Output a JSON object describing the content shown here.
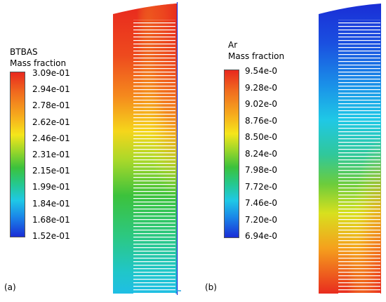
{
  "panel_a": {
    "label": "(a)",
    "legend_title_1": "BTBAS",
    "legend_title_2": "Mass fraction",
    "ticks": [
      "3.09e-01",
      "2.94e-01",
      "2.78e-01",
      "2.62e-01",
      "2.46e-01",
      "2.31e-01",
      "2.15e-01",
      "1.99e-01",
      "1.84e-01",
      "1.68e-01",
      "1.52e-01"
    ],
    "colormap": "rainbow-high-top"
  },
  "panel_b": {
    "label": "(b)",
    "legend_title_1": "Ar",
    "legend_title_2": "Mass fraction",
    "ticks": [
      "9.54e-0",
      "9.28e-0",
      "9.02e-0",
      "8.76e-0",
      "8.50e-0",
      "8.24e-0",
      "7.98e-0",
      "7.72e-0",
      "7.46e-0",
      "7.20e-0",
      "6.94e-0"
    ],
    "colormap": "rainbow-high-top"
  },
  "colors": {
    "red": "#e8281e",
    "orange": "#f7941d",
    "yellow": "#f5e61b",
    "green": "#3cc23c",
    "cyan": "#1fc8e6",
    "blue": "#1a2dd6",
    "wafer_lines": "#ffffff",
    "edge_accent": "#2aa6e0"
  }
}
